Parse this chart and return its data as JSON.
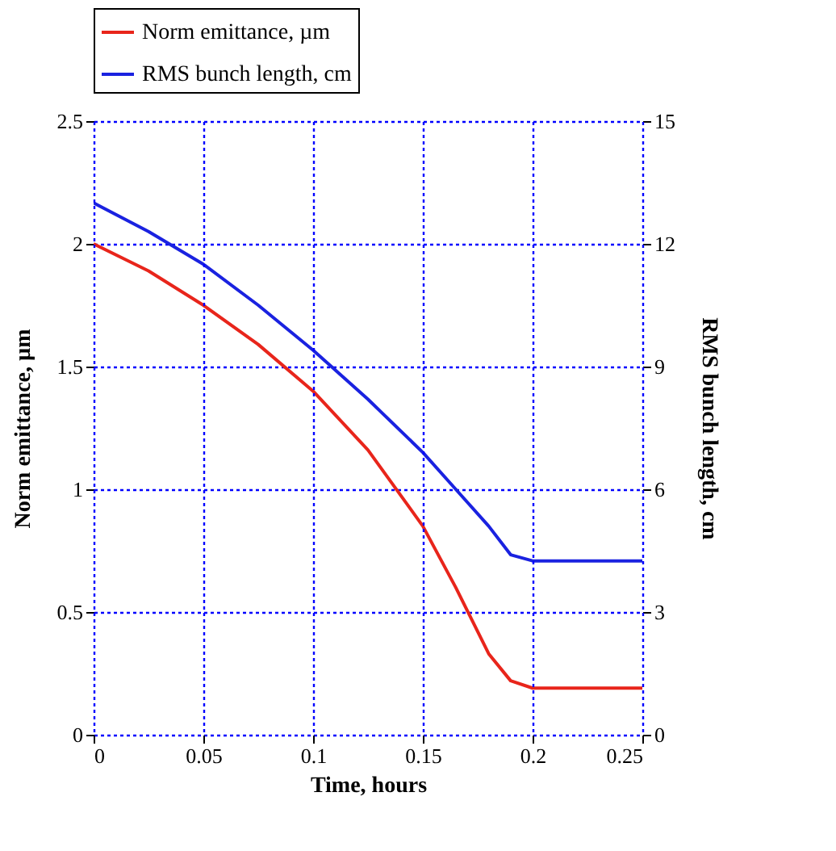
{
  "chart_data": {
    "type": "line",
    "xlabel": "Time, hours",
    "ylabel": "Norm emittance, µm",
    "y2label": "RMS bunch length, cm",
    "x": [
      0,
      0.025,
      0.05,
      0.075,
      0.1,
      0.125,
      0.15,
      0.165,
      0.18,
      0.19,
      0.2,
      0.225,
      0.25
    ],
    "series": [
      {
        "name": "Norm emittance, µm",
        "color": "#e8251b",
        "values": [
          2.0,
          1.89,
          1.75,
          1.59,
          1.4,
          1.16,
          0.85,
          0.6,
          0.33,
          0.22,
          0.19,
          0.19,
          0.19
        ]
      },
      {
        "name": "RMS bunch length, cm",
        "color": "#1a22e0",
        "axis": "y2",
        "values": [
          13.0,
          12.3,
          11.5,
          10.5,
          9.4,
          8.2,
          6.9,
          6.0,
          5.1,
          4.4,
          4.25,
          4.25,
          4.25
        ]
      }
    ],
    "xlim": [
      0,
      0.25
    ],
    "xticks": [
      0,
      0.05,
      0.1,
      0.15,
      0.2,
      0.25
    ],
    "ylim": [
      0,
      2.5
    ],
    "yticks": [
      0,
      0.5,
      1,
      1.5,
      2,
      2.5
    ],
    "y2lim": [
      0,
      15
    ],
    "y2ticks": [
      0,
      3,
      6,
      9,
      12,
      15
    ],
    "grid": true,
    "legend": "top left",
    "marker": "none",
    "line_style": "solid"
  }
}
